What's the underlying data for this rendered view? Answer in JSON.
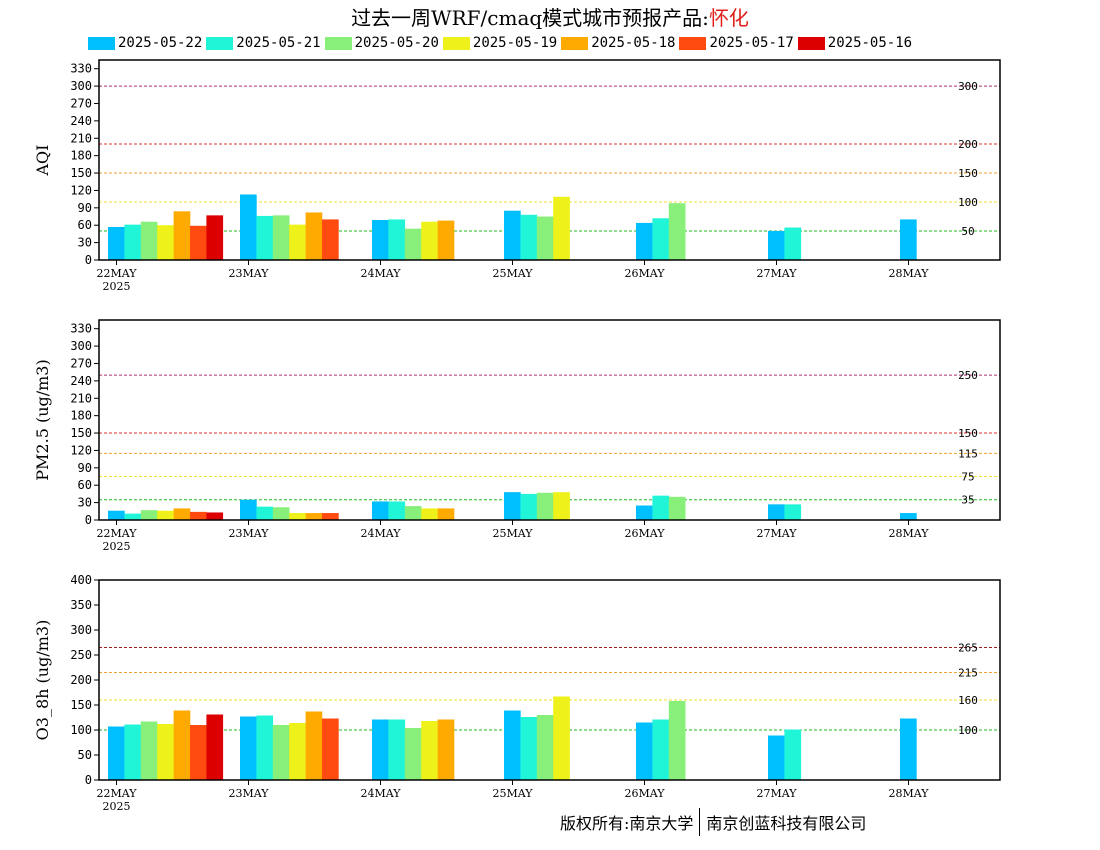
{
  "title": {
    "main": "过去一周WRF/cmaq模式城市预报产品:",
    "city": "怀化"
  },
  "footer": {
    "left": "版权所有:南京大学",
    "right": "南京创蓝科技有限公司"
  },
  "colors": {
    "runs": [
      "#00bfff",
      "#20f5d8",
      "#88f07a",
      "#eef21a",
      "#ffaa00",
      "#ff4a10",
      "#dd0000"
    ],
    "threshold_colors": {
      "green": "#22bb22",
      "yellow": "#f0e030",
      "orange": "#f0a030",
      "red": "#e03030",
      "purple": "#b03070",
      "maroon": "#a02020"
    }
  },
  "chart_data": [
    {
      "type": "bar",
      "ylabel": "AQI",
      "ylim": [
        0,
        345
      ],
      "yticks": [
        0,
        30,
        60,
        90,
        120,
        150,
        180,
        210,
        240,
        270,
        300,
        330
      ],
      "categories": [
        "22MAY",
        "23MAY",
        "24MAY",
        "25MAY",
        "26MAY",
        "27MAY",
        "28MAY"
      ],
      "first_year": "2025",
      "series": [
        {
          "name": "2025-05-22",
          "values": [
            57,
            113,
            69,
            85,
            64,
            50,
            70
          ]
        },
        {
          "name": "2025-05-21",
          "values": [
            61,
            76,
            70,
            78,
            72,
            56,
            null
          ]
        },
        {
          "name": "2025-05-20",
          "values": [
            66,
            77,
            54,
            75,
            98,
            null,
            null
          ]
        },
        {
          "name": "2025-05-19",
          "values": [
            60,
            61,
            66,
            109,
            null,
            null,
            null
          ]
        },
        {
          "name": "2025-05-18",
          "values": [
            84,
            82,
            68,
            null,
            null,
            null,
            null
          ]
        },
        {
          "name": "2025-05-17",
          "values": [
            59,
            70,
            null,
            null,
            null,
            null,
            null
          ]
        },
        {
          "name": "2025-05-16",
          "values": [
            77,
            null,
            null,
            null,
            null,
            null,
            null
          ]
        }
      ],
      "thresholds": [
        {
          "value": 50,
          "label": "50",
          "color": "green"
        },
        {
          "value": 100,
          "label": "100",
          "color": "yellow"
        },
        {
          "value": 150,
          "label": "150",
          "color": "orange"
        },
        {
          "value": 200,
          "label": "200",
          "color": "red"
        },
        {
          "value": 300,
          "label": "300",
          "color": "purple"
        }
      ]
    },
    {
      "type": "bar",
      "ylabel": "PM2.5 (ug/m3)",
      "ylim": [
        0,
        345
      ],
      "yticks": [
        0,
        30,
        60,
        90,
        120,
        150,
        180,
        210,
        240,
        270,
        300,
        330
      ],
      "categories": [
        "22MAY",
        "23MAY",
        "24MAY",
        "25MAY",
        "26MAY",
        "27MAY",
        "28MAY"
      ],
      "first_year": "2025",
      "series": [
        {
          "name": "2025-05-22",
          "values": [
            16,
            35,
            32,
            48,
            25,
            27,
            12
          ]
        },
        {
          "name": "2025-05-21",
          "values": [
            11,
            23,
            32,
            45,
            42,
            27,
            null
          ]
        },
        {
          "name": "2025-05-20",
          "values": [
            17,
            22,
            24,
            47,
            40,
            null,
            null
          ]
        },
        {
          "name": "2025-05-19",
          "values": [
            16,
            12,
            20,
            48,
            null,
            null,
            null
          ]
        },
        {
          "name": "2025-05-18",
          "values": [
            20,
            12,
            20,
            null,
            null,
            null,
            null
          ]
        },
        {
          "name": "2025-05-17",
          "values": [
            14,
            12,
            null,
            null,
            null,
            null,
            null
          ]
        },
        {
          "name": "2025-05-16",
          "values": [
            13,
            null,
            null,
            null,
            null,
            null,
            null
          ]
        }
      ],
      "thresholds": [
        {
          "value": 35,
          "label": "35",
          "color": "green"
        },
        {
          "value": 75,
          "label": "75",
          "color": "yellow"
        },
        {
          "value": 115,
          "label": "115",
          "color": "orange"
        },
        {
          "value": 150,
          "label": "150",
          "color": "red"
        },
        {
          "value": 250,
          "label": "250",
          "color": "purple"
        }
      ]
    },
    {
      "type": "bar",
      "ylabel": "O3_8h (ug/m3)",
      "ylim": [
        0,
        400
      ],
      "yticks": [
        0,
        50,
        100,
        150,
        200,
        250,
        300,
        350,
        400
      ],
      "categories": [
        "22MAY",
        "23MAY",
        "24MAY",
        "25MAY",
        "26MAY",
        "27MAY",
        "28MAY"
      ],
      "first_year": "2025",
      "series": [
        {
          "name": "2025-05-22",
          "values": [
            107,
            127,
            121,
            139,
            115,
            89,
            123
          ]
        },
        {
          "name": "2025-05-21",
          "values": [
            111,
            129,
            121,
            126,
            121,
            101,
            null
          ]
        },
        {
          "name": "2025-05-20",
          "values": [
            117,
            110,
            104,
            130,
            158,
            null,
            null
          ]
        },
        {
          "name": "2025-05-19",
          "values": [
            112,
            114,
            118,
            167,
            null,
            null,
            null
          ]
        },
        {
          "name": "2025-05-18",
          "values": [
            139,
            137,
            121,
            null,
            null,
            null,
            null
          ]
        },
        {
          "name": "2025-05-17",
          "values": [
            110,
            123,
            null,
            null,
            null,
            null,
            null
          ]
        },
        {
          "name": "2025-05-16",
          "values": [
            131,
            null,
            null,
            null,
            null,
            null,
            null
          ]
        }
      ],
      "thresholds": [
        {
          "value": 100,
          "label": "100",
          "color": "green"
        },
        {
          "value": 160,
          "label": "160",
          "color": "yellow"
        },
        {
          "value": 215,
          "label": "215",
          "color": "orange"
        },
        {
          "value": 265,
          "label": "265",
          "color": "maroon"
        }
      ]
    }
  ]
}
